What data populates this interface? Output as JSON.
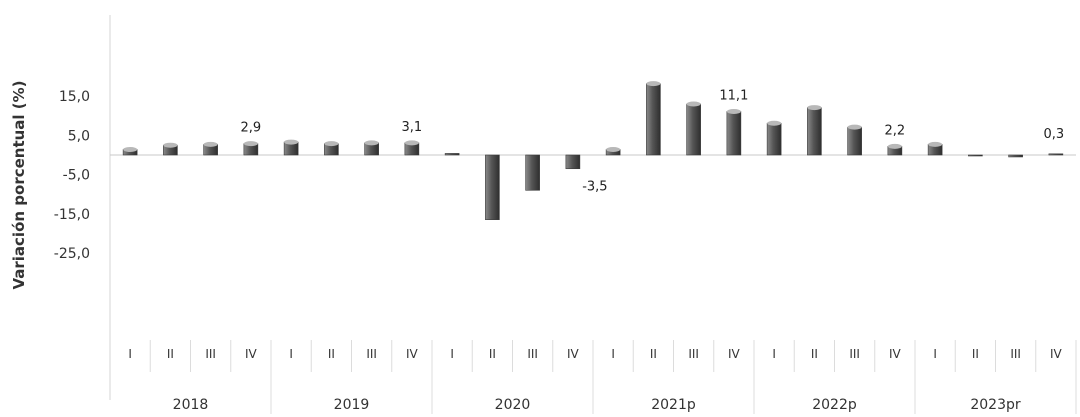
{
  "chart_data": {
    "type": "bar",
    "title": "",
    "xlabel": "",
    "ylabel": "Variación porcentual (%)",
    "ylim": [
      -25,
      20
    ],
    "yticks": [
      "15,0",
      "5,0",
      "-5,0",
      "-15,0",
      "-25,0"
    ],
    "ytick_values": [
      15,
      5,
      -5,
      -15,
      -25
    ],
    "grid": false,
    "legend": "none",
    "bar_color": "#555555",
    "years": [
      {
        "label": "2018",
        "quarters": [
          "I",
          "II",
          "III",
          "IV"
        ]
      },
      {
        "label": "2019",
        "quarters": [
          "I",
          "II",
          "III",
          "IV"
        ]
      },
      {
        "label": "2020",
        "quarters": [
          "I",
          "II",
          "III",
          "IV"
        ]
      },
      {
        "label": "2021p",
        "quarters": [
          "I",
          "II",
          "III",
          "IV"
        ]
      },
      {
        "label": "2022p",
        "quarters": [
          "I",
          "II",
          "III",
          "IV"
        ]
      },
      {
        "label": "2023pr",
        "quarters": [
          "I",
          "II",
          "III",
          "IV"
        ]
      }
    ],
    "values": [
      1.4,
      2.5,
      2.7,
      2.9,
      3.3,
      2.9,
      3.1,
      3.1,
      0.4,
      -16.5,
      -9.0,
      -3.5,
      1.4,
      18.2,
      13.0,
      11.1,
      8.1,
      12.1,
      7.1,
      2.2,
      2.7,
      0.0,
      -0.5,
      0.3
    ],
    "data_labels": [
      "",
      "",
      "",
      "2,9",
      "",
      "",
      "",
      "3,1",
      "",
      "",
      "",
      "-3,5",
      "",
      "",
      "",
      "11,1",
      "",
      "",
      "",
      "2,2",
      "",
      "",
      "",
      "0,3"
    ]
  }
}
